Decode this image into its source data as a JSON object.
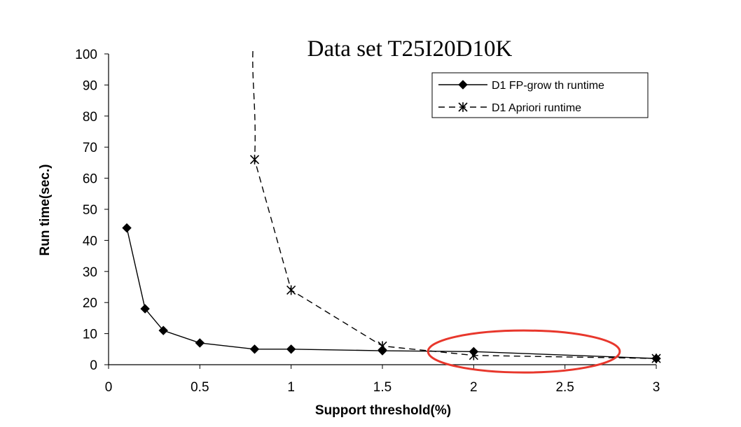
{
  "chart_data": {
    "type": "line",
    "title": "Data set T25I20D10K",
    "xlabel": "Support threshold(%)",
    "ylabel": "Run time(sec.)",
    "xlim": [
      0,
      3
    ],
    "ylim": [
      0,
      100
    ],
    "x_ticks": [
      "0",
      "0.5",
      "1",
      "1.5",
      "2",
      "2.5",
      "3"
    ],
    "y_ticks": [
      "0",
      "10",
      "20",
      "30",
      "40",
      "50",
      "60",
      "70",
      "80",
      "90",
      "100"
    ],
    "grid": false,
    "legend_position": "top-right",
    "series": [
      {
        "name": "D1 FP-grow th runtime",
        "line_style": "solid",
        "marker": "diamond",
        "x": [
          0.1,
          0.2,
          0.3,
          0.5,
          0.8,
          1,
          1.5,
          2,
          3
        ],
        "values": [
          44,
          18,
          11,
          7,
          5,
          5,
          4.5,
          4.2,
          2
        ]
      },
      {
        "name": "D1 Apriori runtime",
        "line_style": "dashed",
        "marker": "asterisk",
        "x": [
          0.8,
          1,
          1.5,
          2,
          3
        ],
        "values": [
          66,
          24,
          6,
          3,
          2
        ],
        "curve_to_top": true
      }
    ],
    "annotation": {
      "shape": "ellipse",
      "color": "#e8372c",
      "x_range": [
        1.75,
        2.8
      ],
      "y_range": [
        -2.5,
        11
      ]
    }
  }
}
